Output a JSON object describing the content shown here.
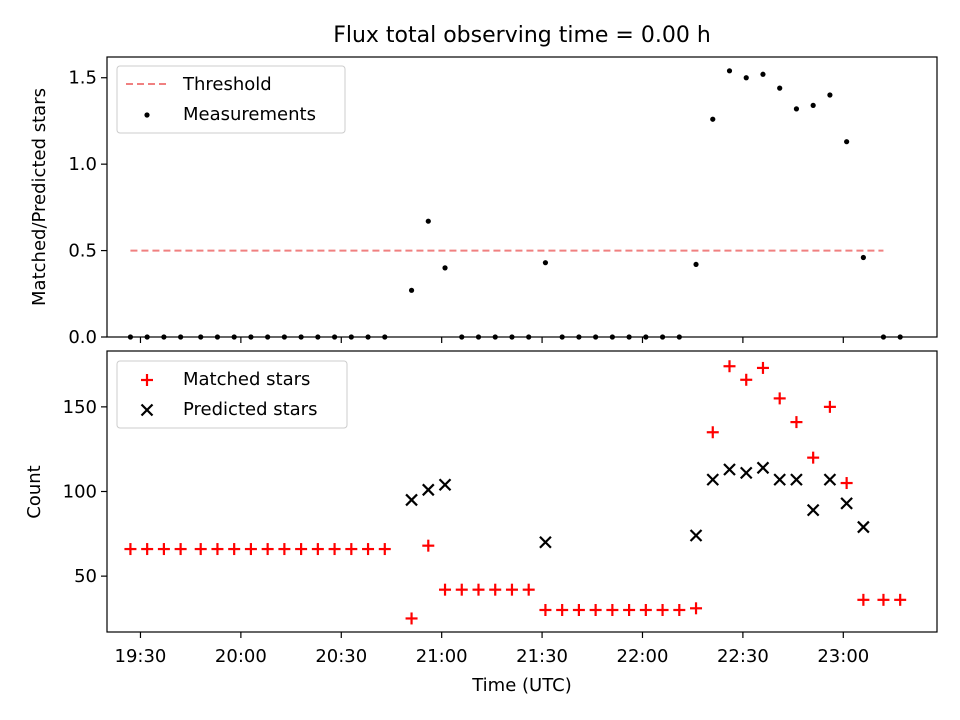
{
  "figure_title": "Flux total observing time = 0.00 h",
  "chart_data": [
    {
      "type": "scatter",
      "title": "Flux total observing time = 0.00 h",
      "xlabel": "",
      "ylabel": "Matched/Predicted stars",
      "xlim": [
        "19:20",
        "23:28"
      ],
      "ylim": [
        0,
        1.62
      ],
      "yticks": [
        0.0,
        0.5,
        1.0,
        1.5
      ],
      "ytick_labels": [
        "0.0",
        "0.5",
        "1.0",
        "1.5"
      ],
      "grid": false,
      "legend_position": "top-left",
      "threshold": {
        "name": "Threshold",
        "color": "#f08080",
        "style": "dashed",
        "value": 0.5,
        "x_range": [
          "19:27",
          "23:12"
        ]
      },
      "series": [
        {
          "name": "Measurements",
          "marker": "dot",
          "color": "#000000",
          "points": [
            [
              "19:27",
              0
            ],
            [
              "19:32",
              0
            ],
            [
              "19:37",
              0
            ],
            [
              "19:42",
              0
            ],
            [
              "19:48",
              0
            ],
            [
              "19:53",
              0
            ],
            [
              "19:58",
              0
            ],
            [
              "20:03",
              0
            ],
            [
              "20:08",
              0
            ],
            [
              "20:13",
              0
            ],
            [
              "20:18",
              0
            ],
            [
              "20:23",
              0
            ],
            [
              "20:28",
              0
            ],
            [
              "20:33",
              0
            ],
            [
              "20:38",
              0
            ],
            [
              "20:43",
              0
            ],
            [
              "20:51",
              0.27
            ],
            [
              "20:56",
              0.67
            ],
            [
              "21:01",
              0.4
            ],
            [
              "21:06",
              0
            ],
            [
              "21:11",
              0
            ],
            [
              "21:16",
              0
            ],
            [
              "21:21",
              0
            ],
            [
              "21:26",
              0
            ],
            [
              "21:31",
              0.43
            ],
            [
              "21:36",
              0
            ],
            [
              "21:41",
              0
            ],
            [
              "21:46",
              0
            ],
            [
              "21:51",
              0
            ],
            [
              "21:56",
              0
            ],
            [
              "22:01",
              0
            ],
            [
              "22:06",
              0
            ],
            [
              "22:11",
              0
            ],
            [
              "22:16",
              0.42
            ],
            [
              "22:21",
              1.26
            ],
            [
              "22:26",
              1.54
            ],
            [
              "22:31",
              1.5
            ],
            [
              "22:36",
              1.52
            ],
            [
              "22:41",
              1.44
            ],
            [
              "22:46",
              1.32
            ],
            [
              "22:51",
              1.34
            ],
            [
              "22:56",
              1.4
            ],
            [
              "23:01",
              1.13
            ],
            [
              "23:06",
              0.46
            ],
            [
              "23:12",
              0
            ],
            [
              "23:17",
              0
            ]
          ]
        }
      ]
    },
    {
      "type": "scatter",
      "title": "",
      "xlabel": "Time (UTC)",
      "ylabel": "Count",
      "xlim": [
        "19:20",
        "23:28"
      ],
      "ylim": [
        17,
        183
      ],
      "yticks": [
        50,
        100,
        150
      ],
      "ytick_labels": [
        "50",
        "100",
        "150"
      ],
      "xticks": [
        "19:30",
        "20:00",
        "20:30",
        "21:00",
        "21:30",
        "22:00",
        "22:30",
        "23:00"
      ],
      "xtick_labels": [
        "19:30",
        "20:00",
        "20:30",
        "21:00",
        "21:30",
        "22:00",
        "22:30",
        "23:00"
      ],
      "grid": false,
      "legend_position": "top-left",
      "series": [
        {
          "name": "Matched stars",
          "marker": "plus",
          "color": "#ff0000",
          "points": [
            [
              "19:27",
              66
            ],
            [
              "19:32",
              66
            ],
            [
              "19:37",
              66
            ],
            [
              "19:42",
              66
            ],
            [
              "19:48",
              66
            ],
            [
              "19:53",
              66
            ],
            [
              "19:58",
              66
            ],
            [
              "20:03",
              66
            ],
            [
              "20:08",
              66
            ],
            [
              "20:13",
              66
            ],
            [
              "20:18",
              66
            ],
            [
              "20:23",
              66
            ],
            [
              "20:28",
              66
            ],
            [
              "20:33",
              66
            ],
            [
              "20:38",
              66
            ],
            [
              "20:43",
              66
            ],
            [
              "20:51",
              25
            ],
            [
              "20:56",
              68
            ],
            [
              "21:01",
              42
            ],
            [
              "21:06",
              42
            ],
            [
              "21:11",
              42
            ],
            [
              "21:16",
              42
            ],
            [
              "21:21",
              42
            ],
            [
              "21:26",
              42
            ],
            [
              "21:31",
              30
            ],
            [
              "21:36",
              30
            ],
            [
              "21:41",
              30
            ],
            [
              "21:46",
              30
            ],
            [
              "21:51",
              30
            ],
            [
              "21:56",
              30
            ],
            [
              "22:01",
              30
            ],
            [
              "22:06",
              30
            ],
            [
              "22:11",
              30
            ],
            [
              "22:16",
              31
            ],
            [
              "22:21",
              135
            ],
            [
              "22:26",
              174
            ],
            [
              "22:31",
              166
            ],
            [
              "22:36",
              173
            ],
            [
              "22:41",
              155
            ],
            [
              "22:46",
              141
            ],
            [
              "22:51",
              120
            ],
            [
              "22:56",
              150
            ],
            [
              "23:01",
              105
            ],
            [
              "23:06",
              36
            ],
            [
              "23:12",
              36
            ],
            [
              "23:17",
              36
            ]
          ]
        },
        {
          "name": "Predicted stars",
          "marker": "x",
          "color": "#000000",
          "points": [
            [
              "20:51",
              95
            ],
            [
              "20:56",
              101
            ],
            [
              "21:01",
              104
            ],
            [
              "21:31",
              70
            ],
            [
              "22:16",
              74
            ],
            [
              "22:21",
              107
            ],
            [
              "22:26",
              113
            ],
            [
              "22:31",
              111
            ],
            [
              "22:36",
              114
            ],
            [
              "22:41",
              107
            ],
            [
              "22:46",
              107
            ],
            [
              "22:51",
              89
            ],
            [
              "22:56",
              107
            ],
            [
              "23:01",
              93
            ],
            [
              "23:06",
              79
            ]
          ]
        }
      ]
    }
  ]
}
